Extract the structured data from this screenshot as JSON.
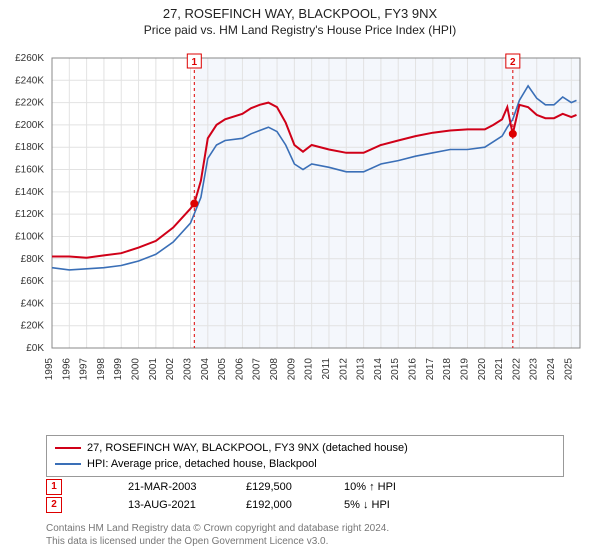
{
  "title_line1": "27, ROSEFINCH WAY, BLACKPOOL, FY3 9NX",
  "title_line2": "Price paid vs. HM Land Registry's House Price Index (HPI)",
  "chart": {
    "type": "line",
    "plot_background": "#f4f7fc",
    "chart_background": "#ffffff",
    "grid_color": "#e2e2e2",
    "y": {
      "min": 0,
      "max": 260000,
      "tick_step": 20000,
      "fmt_prefix": "£",
      "fmt_suffix": "K",
      "fmt_div": 1000,
      "fontsize": 10
    },
    "x": {
      "years": [
        1995,
        1996,
        1997,
        1998,
        1999,
        2000,
        2001,
        2002,
        2003,
        2004,
        2005,
        2006,
        2007,
        2008,
        2009,
        2010,
        2011,
        2012,
        2013,
        2014,
        2015,
        2016,
        2017,
        2018,
        2019,
        2020,
        2021,
        2022,
        2023,
        2024,
        2025
      ],
      "min": 1995,
      "max": 2025.5,
      "fontsize": 10,
      "label_rotation": -90
    },
    "shade_from_year": 2003.22,
    "series": [
      {
        "name": "27, ROSEFINCH WAY, BLACKPOOL, FY3 9NX (detached house)",
        "color": "#d00018",
        "stroke_width": 2,
        "points": [
          [
            1995,
            82000
          ],
          [
            1996,
            82000
          ],
          [
            1997,
            81000
          ],
          [
            1998,
            83000
          ],
          [
            1999,
            85000
          ],
          [
            2000,
            90000
          ],
          [
            2001,
            96000
          ],
          [
            2002,
            108000
          ],
          [
            2003,
            125000
          ],
          [
            2003.22,
            129500
          ],
          [
            2003.6,
            150000
          ],
          [
            2004,
            188000
          ],
          [
            2004.5,
            200000
          ],
          [
            2005,
            205000
          ],
          [
            2006,
            210000
          ],
          [
            2006.5,
            215000
          ],
          [
            2007,
            218000
          ],
          [
            2007.5,
            220000
          ],
          [
            2008,
            216000
          ],
          [
            2008.5,
            202000
          ],
          [
            2009,
            182000
          ],
          [
            2009.5,
            176000
          ],
          [
            2010,
            182000
          ],
          [
            2011,
            178000
          ],
          [
            2012,
            175000
          ],
          [
            2013,
            175000
          ],
          [
            2014,
            182000
          ],
          [
            2015,
            186000
          ],
          [
            2016,
            190000
          ],
          [
            2017,
            193000
          ],
          [
            2018,
            195000
          ],
          [
            2019,
            196000
          ],
          [
            2020,
            196000
          ],
          [
            2020.5,
            200000
          ],
          [
            2021,
            205000
          ],
          [
            2021.3,
            216000
          ],
          [
            2021.5,
            200000
          ],
          [
            2021.62,
            192000
          ],
          [
            2022,
            218000
          ],
          [
            2022.5,
            216000
          ],
          [
            2023,
            209000
          ],
          [
            2023.5,
            206000
          ],
          [
            2024,
            206000
          ],
          [
            2024.5,
            210000
          ],
          [
            2025,
            207000
          ],
          [
            2025.3,
            209000
          ]
        ]
      },
      {
        "name": "HPI: Average price, detached house, Blackpool",
        "color": "#3a6fb7",
        "stroke_width": 1.6,
        "points": [
          [
            1995,
            72000
          ],
          [
            1996,
            70000
          ],
          [
            1997,
            71000
          ],
          [
            1998,
            72000
          ],
          [
            1999,
            74000
          ],
          [
            2000,
            78000
          ],
          [
            2001,
            84000
          ],
          [
            2002,
            95000
          ],
          [
            2003,
            112000
          ],
          [
            2003.6,
            135000
          ],
          [
            2004,
            170000
          ],
          [
            2004.5,
            182000
          ],
          [
            2005,
            186000
          ],
          [
            2006,
            188000
          ],
          [
            2006.5,
            192000
          ],
          [
            2007,
            195000
          ],
          [
            2007.5,
            198000
          ],
          [
            2008,
            194000
          ],
          [
            2008.5,
            182000
          ],
          [
            2009,
            165000
          ],
          [
            2009.5,
            160000
          ],
          [
            2010,
            165000
          ],
          [
            2011,
            162000
          ],
          [
            2012,
            158000
          ],
          [
            2013,
            158000
          ],
          [
            2014,
            165000
          ],
          [
            2015,
            168000
          ],
          [
            2016,
            172000
          ],
          [
            2017,
            175000
          ],
          [
            2018,
            178000
          ],
          [
            2019,
            178000
          ],
          [
            2020,
            180000
          ],
          [
            2020.5,
            185000
          ],
          [
            2021,
            190000
          ],
          [
            2021.3,
            198000
          ],
          [
            2021.62,
            205000
          ],
          [
            2022,
            222000
          ],
          [
            2022.5,
            235000
          ],
          [
            2023,
            224000
          ],
          [
            2023.5,
            218000
          ],
          [
            2024,
            218000
          ],
          [
            2024.5,
            225000
          ],
          [
            2025,
            220000
          ],
          [
            2025.3,
            222000
          ]
        ]
      }
    ],
    "markers": [
      {
        "n": "1",
        "year": 2003.22,
        "dot_value": 129500
      },
      {
        "n": "2",
        "year": 2021.62,
        "dot_value": 192000
      }
    ]
  },
  "legend": {
    "row1": "27, ROSEFINCH WAY, BLACKPOOL, FY3 9NX (detached house)",
    "row2": "HPI: Average price, detached house, Blackpool",
    "color1": "#d00018",
    "color2": "#3a6fb7"
  },
  "records": [
    {
      "n": "1",
      "date": "21-MAR-2003",
      "price": "£129,500",
      "delta": "10% ↑ HPI"
    },
    {
      "n": "2",
      "date": "13-AUG-2021",
      "price": "£192,000",
      "delta": "5% ↓ HPI"
    }
  ],
  "footer_l1": "Contains HM Land Registry data © Crown copyright and database right 2024.",
  "footer_l2": "This data is licensed under the Open Government Licence v3.0."
}
